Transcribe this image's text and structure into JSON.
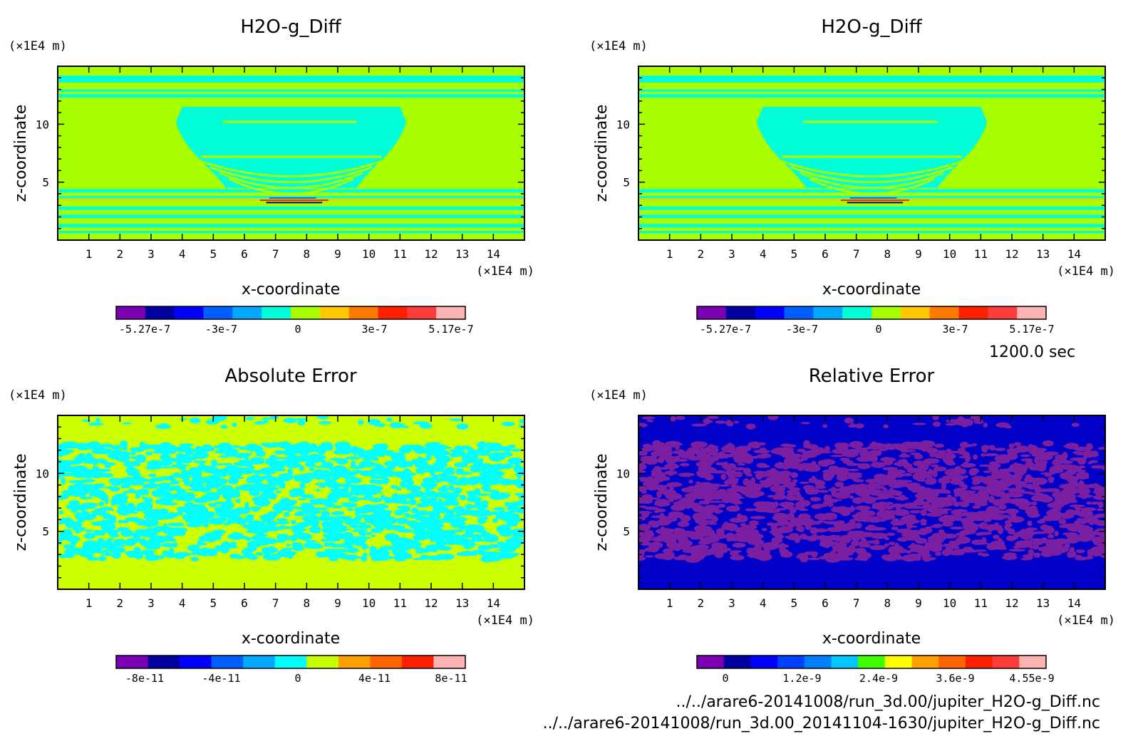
{
  "chart_data": [
    {
      "type": "heatmap",
      "title": "H2O-g_Diff",
      "xlabel": "x-coordinate",
      "ylabel": "z-coordinate",
      "x_unit": "(×1E4 m)",
      "y_unit": "(×1E4 m)",
      "xlim": [
        0,
        15
      ],
      "ylim": [
        0,
        15
      ],
      "xticks": [
        "1",
        "2",
        "3",
        "4",
        "5",
        "6",
        "7",
        "8",
        "9",
        "10",
        "11",
        "12",
        "13",
        "14"
      ],
      "yticks": [
        "5",
        "10"
      ],
      "colorbar": {
        "colors": [
          "#7b00b4",
          "#0000a0",
          "#0000ff",
          "#0060ff",
          "#00a8ff",
          "#00ffd8",
          "#a8ff00",
          "#ffc800",
          "#ff7800",
          "#ff2000",
          "#ff3c3c",
          "#ffb4b4"
        ],
        "labels": [
          "-5.27e-7",
          "-3e-7",
          "0",
          "3e-7",
          "5.17e-7"
        ]
      },
      "pattern": "wave"
    },
    {
      "type": "heatmap",
      "title": "H2O-g_Diff",
      "xlabel": "x-coordinate",
      "ylabel": "z-coordinate",
      "x_unit": "(×1E4 m)",
      "y_unit": "(×1E4 m)",
      "xlim": [
        0,
        15
      ],
      "ylim": [
        0,
        15
      ],
      "xticks": [
        "1",
        "2",
        "3",
        "4",
        "5",
        "6",
        "7",
        "8",
        "9",
        "10",
        "11",
        "12",
        "13",
        "14"
      ],
      "yticks": [
        "5",
        "10"
      ],
      "colorbar": {
        "colors": [
          "#7b00b4",
          "#0000a0",
          "#0000ff",
          "#0060ff",
          "#00a8ff",
          "#00ffd8",
          "#a8ff00",
          "#ffc800",
          "#ff7800",
          "#ff2000",
          "#ff3c3c",
          "#ffb4b4"
        ],
        "labels": [
          "-5.27e-7",
          "-3e-7",
          "0",
          "3e-7",
          "5.17e-7"
        ]
      },
      "pattern": "wave"
    },
    {
      "type": "heatmap",
      "title": "Absolute Error",
      "xlabel": "x-coordinate",
      "ylabel": "z-coordinate",
      "x_unit": "(×1E4 m)",
      "y_unit": "(×1E4 m)",
      "xlim": [
        0,
        15
      ],
      "ylim": [
        0,
        15
      ],
      "xticks": [
        "1",
        "2",
        "3",
        "4",
        "5",
        "6",
        "7",
        "8",
        "9",
        "10",
        "11",
        "12",
        "13",
        "14"
      ],
      "yticks": [
        "5",
        "10"
      ],
      "colorbar": {
        "colors": [
          "#7b00b4",
          "#0000a0",
          "#0000ff",
          "#0060ff",
          "#00a8ff",
          "#00ffff",
          "#c8ff00",
          "#ffa000",
          "#ff6400",
          "#ff2000",
          "#ffb4b4"
        ],
        "labels": [
          "-8e-11",
          "-4e-11",
          "0",
          "4e-11",
          "8e-11"
        ]
      },
      "pattern": "noise",
      "bg_color": "#ccff00",
      "fg_color": "#00ffff"
    },
    {
      "type": "heatmap",
      "title": "Relative Error",
      "xlabel": "x-coordinate",
      "ylabel": "z-coordinate",
      "x_unit": "(×1E4 m)",
      "y_unit": "(×1E4 m)",
      "xlim": [
        0,
        15
      ],
      "ylim": [
        0,
        15
      ],
      "xticks": [
        "1",
        "2",
        "3",
        "4",
        "5",
        "6",
        "7",
        "8",
        "9",
        "10",
        "11",
        "12",
        "13",
        "14"
      ],
      "yticks": [
        "5",
        "10"
      ],
      "colorbar": {
        "colors": [
          "#7b00b4",
          "#0000a0",
          "#0000ff",
          "#0040ff",
          "#0080ff",
          "#00c8ff",
          "#40ff00",
          "#ffff00",
          "#ffa000",
          "#ff6400",
          "#ff2000",
          "#ff3c3c",
          "#ffb4b4"
        ],
        "labels": [
          "0",
          "1.2e-9",
          "2.4e-9",
          "3.6e-9",
          "4.55e-9"
        ]
      },
      "pattern": "noise",
      "bg_color": "#0000c8",
      "fg_color": "#7b1fa2"
    }
  ],
  "annotations": {
    "time": "1200.0 sec",
    "file1": "../../arare6-20141008/run_3d.00/jupiter_H2O-g_Diff.nc",
    "file2": "../../arare6-20141008/run_3d.00_20141104-1630/jupiter_H2O-g_Diff.nc"
  }
}
